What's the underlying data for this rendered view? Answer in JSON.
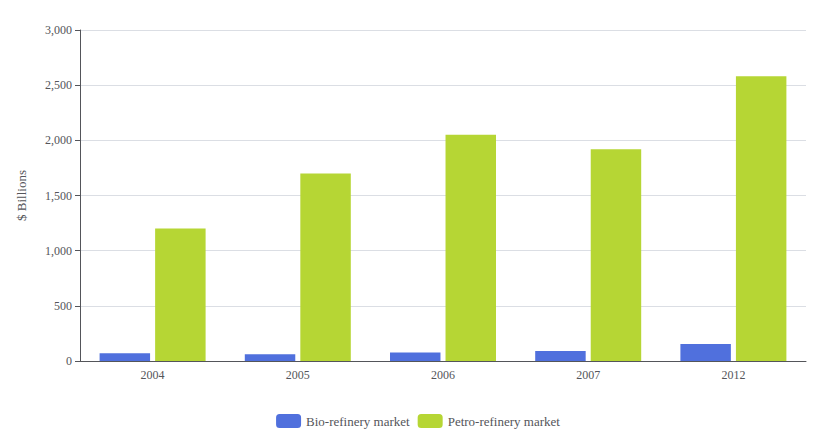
{
  "chart_data": {
    "type": "bar",
    "categories": [
      "2004",
      "2005",
      "2006",
      "2007",
      "2012"
    ],
    "series": [
      {
        "name": "Bio-refinery market",
        "values": [
          70,
          62,
          78,
          90,
          155
        ]
      },
      {
        "name": "Petro-refinery market",
        "values": [
          1200,
          1700,
          2050,
          1920,
          2580
        ]
      }
    ],
    "ylabel": "$ Billions",
    "ylim": [
      0,
      3000
    ],
    "yticks": [
      0,
      500,
      {
        "value": 1000,
        "label": "1,000"
      },
      {
        "value": 1500,
        "label": "1,500"
      },
      {
        "value": 2000,
        "label": "2,000"
      },
      {
        "value": 2500,
        "label": "2,500"
      },
      {
        "value": 3000,
        "label": "3,000"
      }
    ],
    "grid": true,
    "legend": "bottom"
  }
}
